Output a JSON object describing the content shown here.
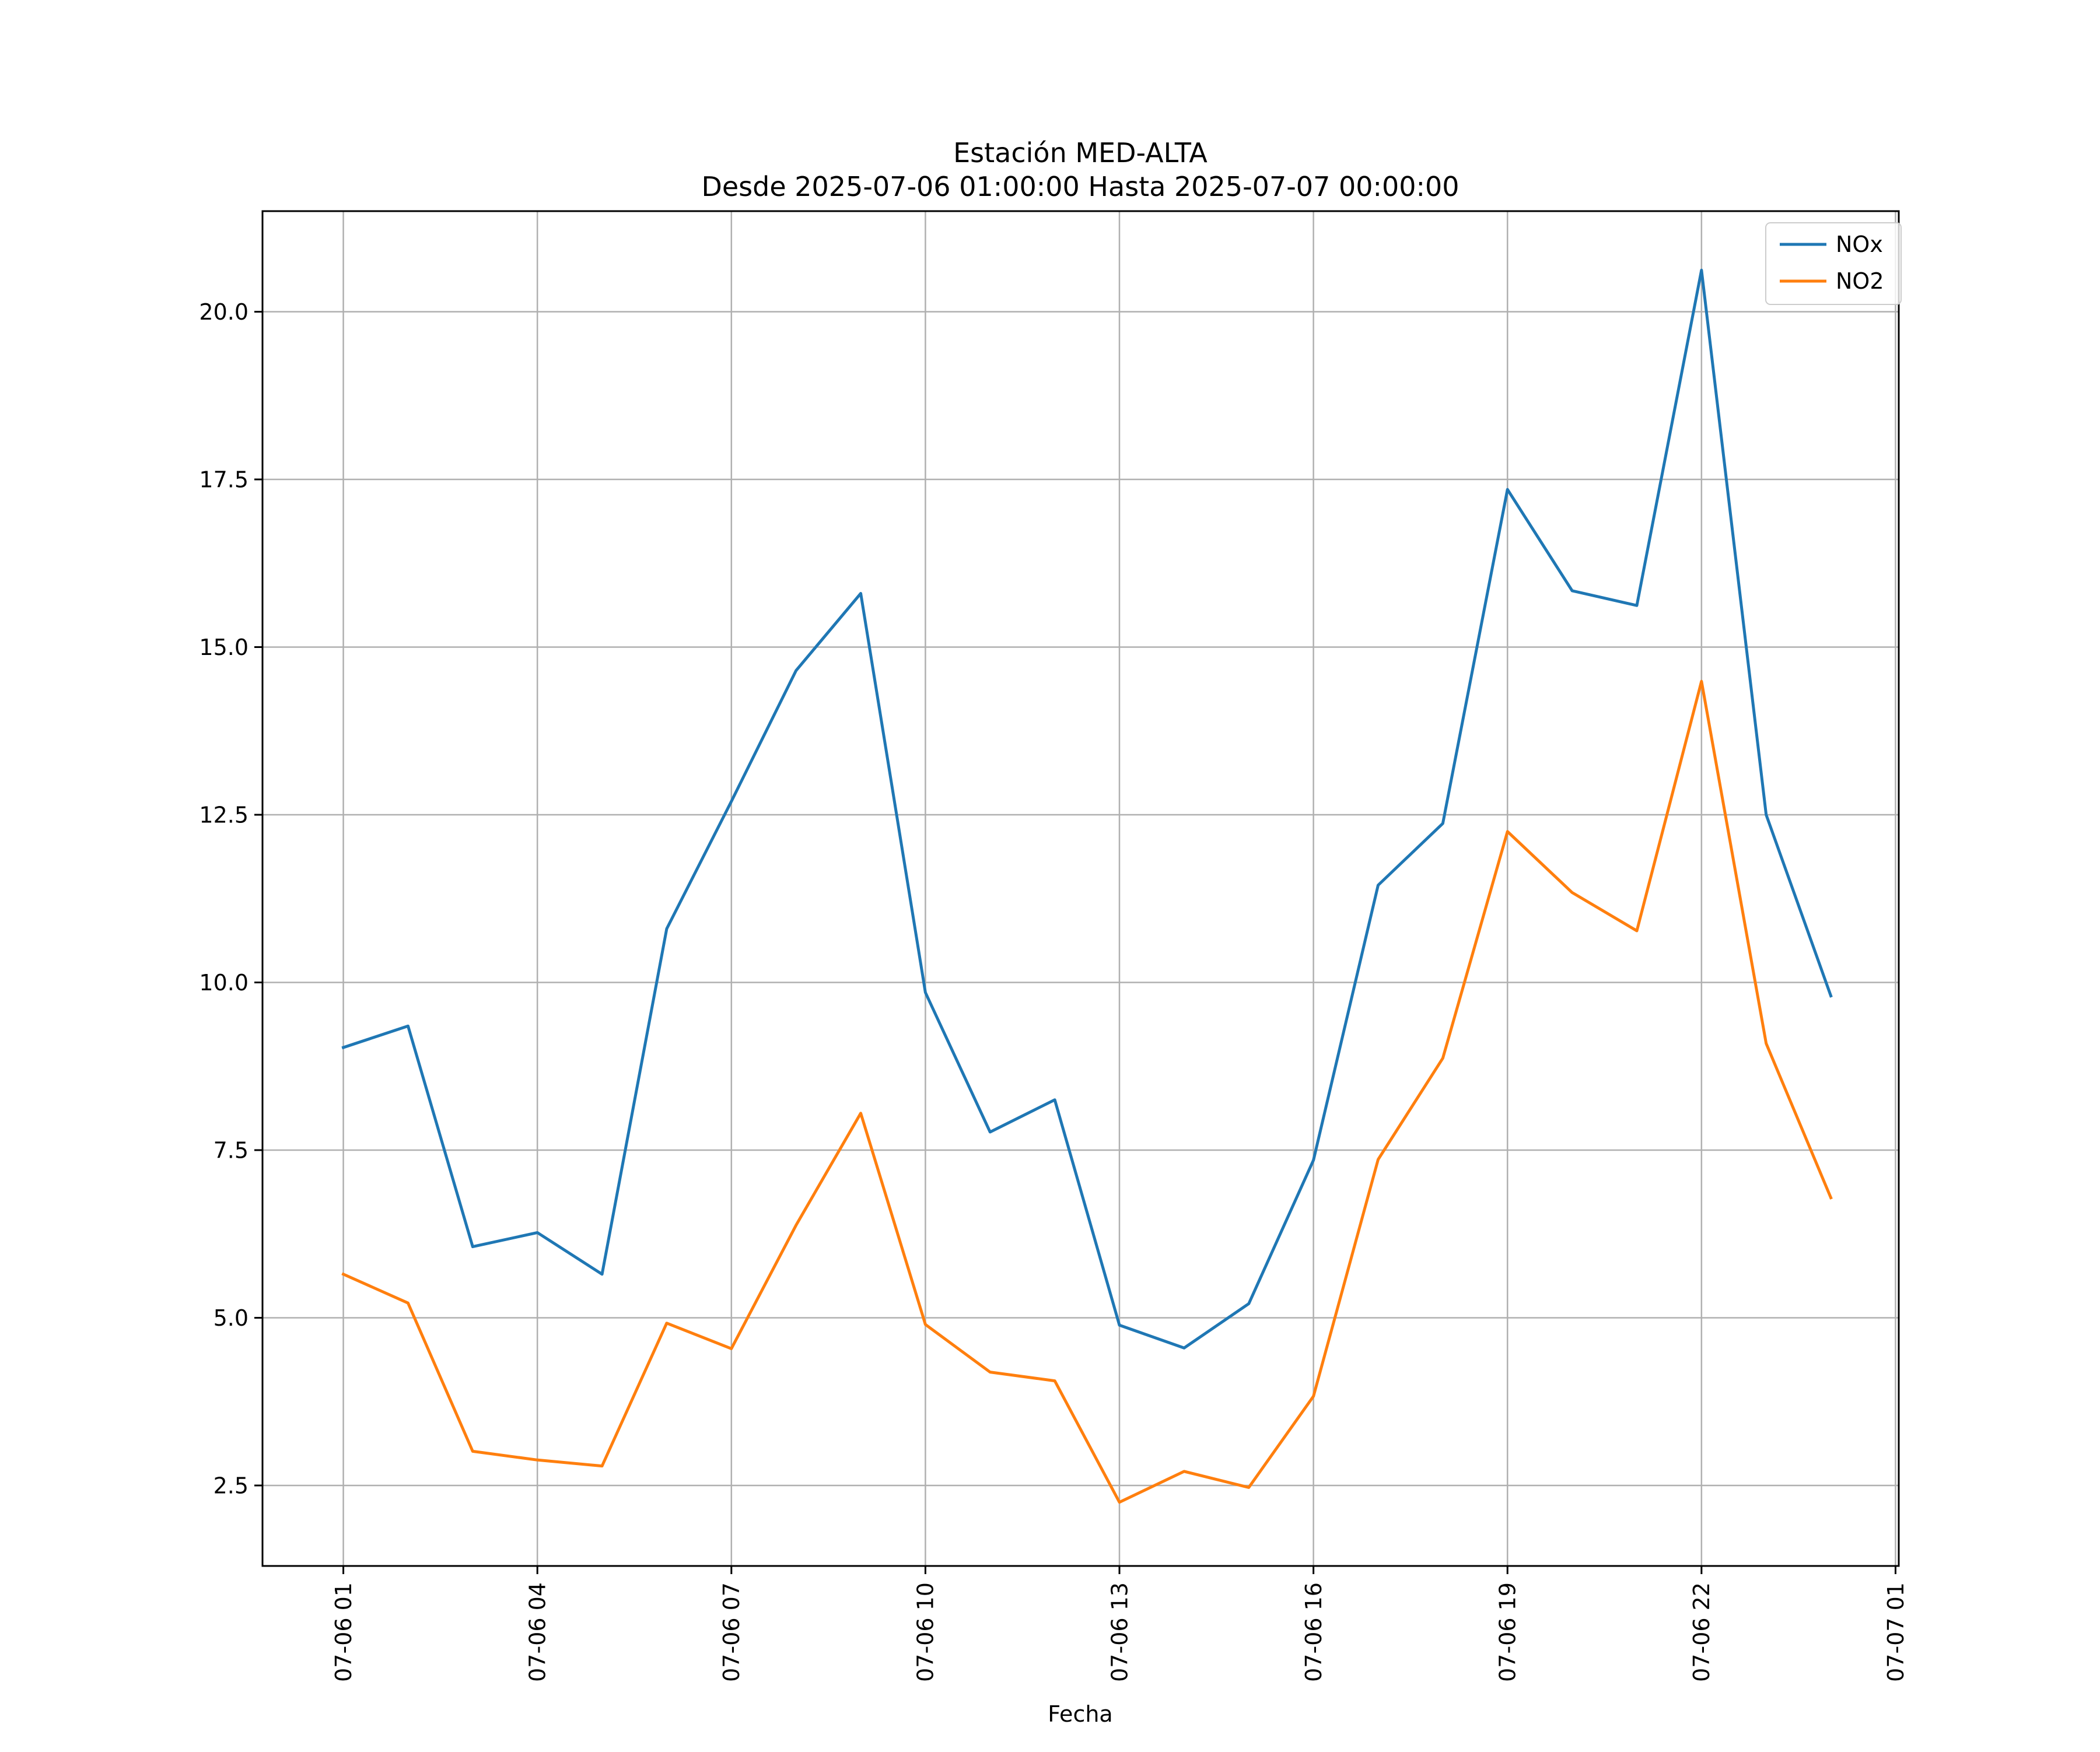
{
  "chart_data": {
    "type": "line",
    "title": "Estación MED-ALTA",
    "subtitle": "Desde 2025-07-06 01:00:00 Hasta 2025-07-07 00:00:00",
    "xlabel": "Fecha",
    "ylabel": "",
    "grid": true,
    "legend_position": "top-right",
    "x": [
      "07-06 01",
      "07-06 02",
      "07-06 03",
      "07-06 04",
      "07-06 05",
      "07-06 06",
      "07-06 07",
      "07-06 08",
      "07-06 09",
      "07-06 10",
      "07-06 11",
      "07-06 12",
      "07-06 13",
      "07-06 14",
      "07-06 15",
      "07-06 16",
      "07-06 17",
      "07-06 18",
      "07-06 19",
      "07-06 20",
      "07-06 21",
      "07-06 22",
      "07-06 23",
      "07-07 00"
    ],
    "x_hours_range": [
      -1.25,
      24.05
    ],
    "x_ticks": [
      {
        "hour": 0,
        "label": "07-06 01"
      },
      {
        "hour": 3,
        "label": "07-06 04"
      },
      {
        "hour": 6,
        "label": "07-06 07"
      },
      {
        "hour": 9,
        "label": "07-06 10"
      },
      {
        "hour": 12,
        "label": "07-06 13"
      },
      {
        "hour": 15,
        "label": "07-06 16"
      },
      {
        "hour": 18,
        "label": "07-06 19"
      },
      {
        "hour": 21,
        "label": "07-06 22"
      },
      {
        "hour": 24,
        "label": "07-07 01"
      }
    ],
    "ylim": [
      1.3,
      21.5
    ],
    "y_ticks": [
      {
        "value": 2.5,
        "label": "2.5"
      },
      {
        "value": 5.0,
        "label": "5.0"
      },
      {
        "value": 7.5,
        "label": "7.5"
      },
      {
        "value": 10.0,
        "label": "10.0"
      },
      {
        "value": 12.5,
        "label": "12.5"
      },
      {
        "value": 15.0,
        "label": "15.0"
      },
      {
        "value": 17.5,
        "label": "17.5"
      },
      {
        "value": 20.0,
        "label": "20.0"
      }
    ],
    "series": [
      {
        "name": "NOx",
        "color": "#1f77b4",
        "values": [
          9.03,
          9.35,
          6.06,
          6.27,
          5.65,
          10.8,
          12.7,
          14.65,
          15.8,
          9.85,
          7.77,
          8.25,
          4.89,
          4.55,
          5.21,
          7.35,
          11.45,
          12.37,
          17.35,
          15.84,
          15.62,
          20.62,
          12.5,
          9.8
        ]
      },
      {
        "name": "NO2",
        "color": "#ff7f0e",
        "values": [
          5.65,
          5.22,
          3.01,
          2.88,
          2.79,
          4.92,
          4.54,
          6.38,
          8.05,
          4.9,
          4.19,
          4.06,
          2.25,
          2.71,
          2.47,
          3.83,
          7.36,
          8.87,
          12.25,
          11.34,
          10.77,
          14.49,
          9.09,
          6.79
        ]
      }
    ]
  }
}
